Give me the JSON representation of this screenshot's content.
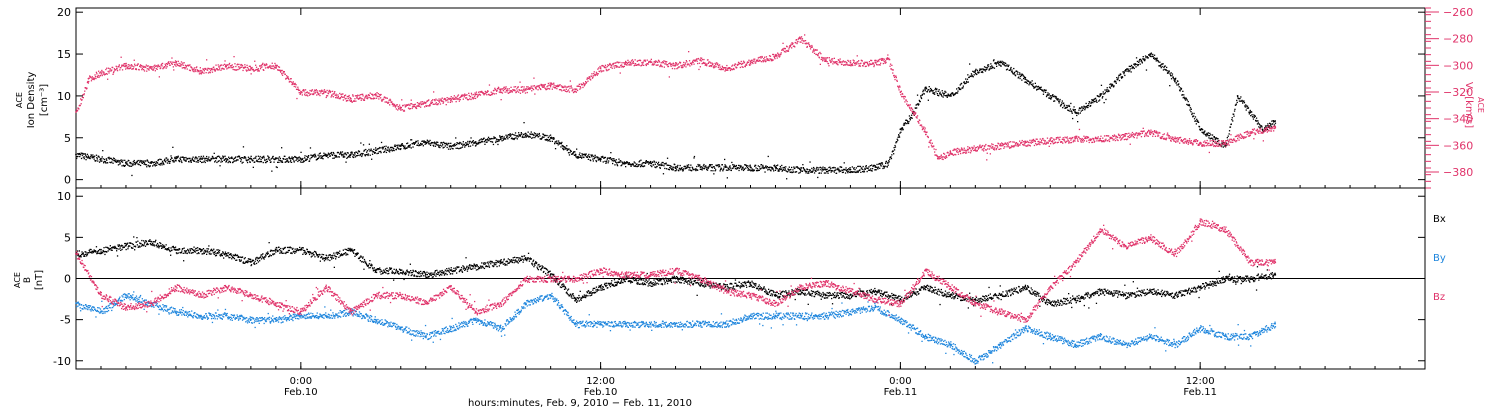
{
  "figure": {
    "xlabel": "hours:minutes, Feb. 9, 2010 − Feb. 11, 2010",
    "x_ticks": [
      {
        "time": "0:00",
        "date": "Feb.10",
        "hours": 0
      },
      {
        "time": "12:00",
        "date": "Feb.10",
        "hours": 12
      },
      {
        "time": "0:00",
        "date": "Feb.11",
        "hours": 24
      },
      {
        "time": "12:00",
        "date": "Feb.11",
        "hours": 36
      }
    ],
    "x_range_hours": [
      -9,
      45
    ],
    "colors": {
      "black": "#000000",
      "red": "#e0336a",
      "blue": "#1f86dd"
    }
  },
  "chart_data": [
    {
      "type": "scatter",
      "panel": "top",
      "ylabel": [
        "ACE",
        "Ion Density",
        "[cm⁻³]"
      ],
      "ylim": [
        -1,
        20.5
      ],
      "yticks": [
        0,
        5,
        10,
        15,
        20
      ],
      "y2label": [
        "ACE",
        "Vₓ [km/s]"
      ],
      "y2lim": [
        -392,
        -257
      ],
      "y2ticks": [
        -380,
        -360,
        -340,
        -320,
        -300,
        -280,
        -260
      ],
      "series": [
        {
          "axis": "left",
          "color": "#000000",
          "x": [
            -9,
            -8,
            -7,
            -6,
            -5,
            -4,
            -3,
            -2,
            -1,
            0,
            1,
            2,
            3,
            4,
            5,
            6,
            7,
            8,
            9,
            10,
            10.5,
            11,
            12,
            13,
            14,
            15,
            16,
            17,
            18,
            19,
            20,
            21,
            22,
            23,
            23.5,
            24,
            24.5,
            25,
            26,
            27,
            28,
            29,
            30,
            31,
            32,
            33,
            34,
            35,
            36,
            37,
            37.5,
            38,
            38.5,
            39
          ],
          "y": [
            3,
            2.5,
            2,
            2,
            2.5,
            2.5,
            2.5,
            2.5,
            2.5,
            2.5,
            3,
            3,
            3.5,
            4,
            4.5,
            4,
            4.5,
            5,
            5.5,
            5,
            4,
            3,
            2.5,
            2,
            2,
            1.5,
            1.5,
            1.5,
            1.5,
            1.5,
            1.2,
            1.2,
            1.2,
            1.5,
            2,
            6,
            8,
            11,
            10,
            13,
            14,
            12,
            10,
            8,
            10,
            13,
            15,
            12,
            6,
            4,
            10,
            8,
            6,
            7
          ]
        },
        {
          "axis": "right",
          "color": "#e0336a",
          "x": [
            -9,
            -8.5,
            -8,
            -7,
            -6,
            -5,
            -4,
            -3,
            -2,
            -1,
            0,
            1,
            2,
            3,
            4,
            5,
            6,
            7,
            8,
            9,
            10,
            11,
            12,
            13,
            14,
            15,
            16,
            17,
            18,
            19,
            20,
            21,
            22,
            23,
            23.5,
            24,
            24.5,
            25,
            25.5,
            26,
            27,
            28,
            29,
            30,
            31,
            32,
            33,
            34,
            35,
            36,
            37,
            38,
            39
          ],
          "y": [
            -335,
            -310,
            -305,
            -300,
            -302,
            -298,
            -304,
            -300,
            -302,
            -300,
            -320,
            -320,
            -325,
            -322,
            -332,
            -328,
            -325,
            -322,
            -318,
            -318,
            -315,
            -318,
            -302,
            -298,
            -297,
            -300,
            -296,
            -302,
            -297,
            -293,
            -280,
            -296,
            -298,
            -298,
            -295,
            -320,
            -335,
            -350,
            -370,
            -365,
            -362,
            -360,
            -358,
            -356,
            -355,
            -355,
            -353,
            -350,
            -355,
            -358,
            -358,
            -350,
            -346
          ]
        }
      ]
    },
    {
      "type": "scatter",
      "panel": "bottom",
      "ylabel": [
        "ACE",
        "B",
        "[nT]"
      ],
      "ylim": [
        -11,
        11
      ],
      "yticks": [
        -10,
        -5,
        0,
        5,
        10
      ],
      "legend": [
        "Bx",
        "By",
        "Bz"
      ],
      "legend_position": "right",
      "zero_line": true,
      "series": [
        {
          "name": "Bx",
          "color": "#000000",
          "x": [
            -9,
            -8,
            -7,
            -6,
            -5,
            -4,
            -3,
            -2,
            -1,
            0,
            1,
            2,
            3,
            4,
            5,
            6,
            7,
            8,
            9,
            10,
            11,
            12,
            13,
            14,
            15,
            16,
            17,
            18,
            19,
            20,
            21,
            22,
            23,
            24,
            25,
            26,
            27,
            28,
            29,
            30,
            31,
            32,
            33,
            34,
            35,
            36,
            37,
            38,
            39
          ],
          "y": [
            3,
            3.5,
            4,
            4.5,
            3.5,
            3.5,
            3,
            2,
            3.5,
            3.5,
            2.5,
            3.5,
            1,
            1,
            0.5,
            1,
            1.5,
            2,
            2.5,
            0.5,
            -2.5,
            -1,
            0,
            -0.5,
            0,
            -0.5,
            -1,
            -0.5,
            -2,
            -1.5,
            -2,
            -2,
            -1.5,
            -2.5,
            -1,
            -2,
            -2.5,
            -2,
            -1,
            -3,
            -2.5,
            -1.5,
            -2,
            -1.5,
            -2,
            -1,
            0,
            0,
            0.5
          ]
        },
        {
          "name": "By",
          "color": "#1f86dd",
          "x": [
            -9,
            -8,
            -7,
            -6,
            -5,
            -4,
            -3,
            -2,
            -1,
            0,
            1,
            2,
            3,
            4,
            5,
            6,
            7,
            8,
            9,
            10,
            11,
            12,
            13,
            14,
            15,
            16,
            17,
            18,
            19,
            20,
            21,
            22,
            23,
            24,
            25,
            26,
            27,
            28,
            29,
            30,
            31,
            32,
            33,
            34,
            35,
            36,
            37,
            38,
            39
          ],
          "y": [
            -3,
            -4,
            -2,
            -3,
            -4,
            -4.5,
            -4.5,
            -5,
            -5,
            -4.5,
            -4.5,
            -4,
            -5,
            -6,
            -7,
            -6,
            -5,
            -6,
            -3,
            -2,
            -5.5,
            -5.5,
            -5.5,
            -5.5,
            -5.5,
            -5.5,
            -5.5,
            -4.5,
            -4.5,
            -4.5,
            -4.5,
            -4,
            -3.5,
            -5,
            -7,
            -8,
            -10,
            -8,
            -6,
            -7,
            -8,
            -7,
            -8,
            -7,
            -8,
            -6,
            -7,
            -7,
            -5.5
          ]
        },
        {
          "name": "Bz",
          "color": "#e0336a",
          "x": [
            -9,
            -8,
            -7,
            -6,
            -5,
            -4,
            -3,
            -2,
            -1,
            0,
            1,
            2,
            3,
            4,
            5,
            6,
            7,
            8,
            9,
            10,
            11,
            12,
            13,
            14,
            15,
            16,
            17,
            18,
            19,
            20,
            21,
            22,
            23,
            24,
            25,
            26,
            27,
            28,
            29,
            30,
            31,
            32,
            33,
            34,
            35,
            36,
            37,
            38,
            39
          ],
          "y": [
            3,
            -2,
            -3.5,
            -3,
            -1,
            -2,
            -1,
            -2,
            -3,
            -4,
            -1,
            -4,
            -2,
            -2,
            -3,
            -1,
            -4,
            -3,
            0,
            0,
            0,
            1,
            0.5,
            0.5,
            1,
            0,
            -1.5,
            -2,
            -3,
            -1,
            -0.5,
            -1.5,
            -2.5,
            -3,
            1,
            -1,
            -3,
            -4,
            -5,
            -1,
            2,
            6,
            4,
            5,
            3,
            7,
            6,
            2,
            2
          ]
        }
      ]
    }
  ]
}
